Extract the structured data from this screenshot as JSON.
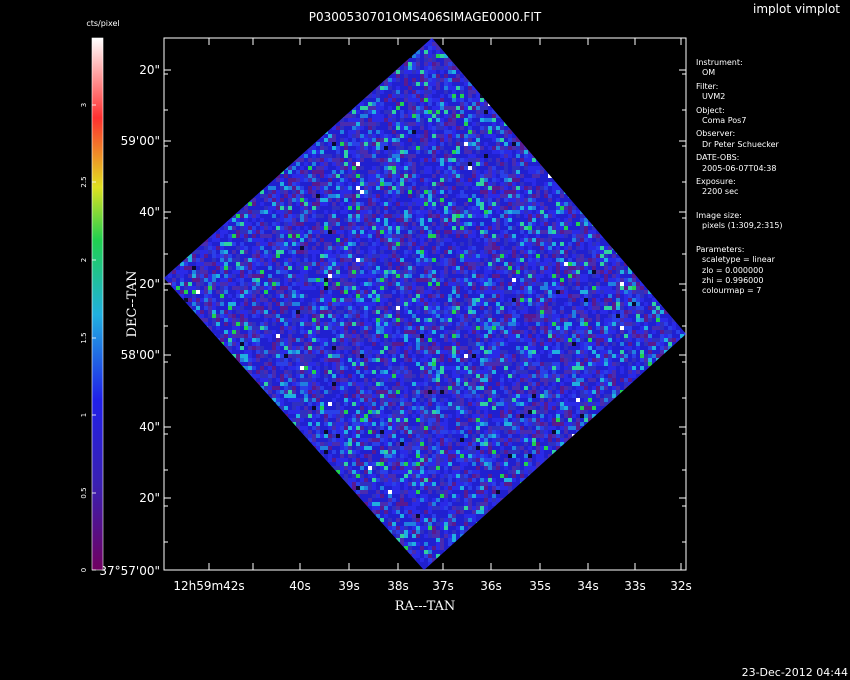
{
  "chart_data": {
    "type": "heatmap",
    "title": "P0300530701OMS406SIMAGE0000.FIT",
    "xlabel": "RA---TAN",
    "ylabel": "DEC--TAN",
    "x_ticks": [
      "12h59m42s",
      "40s",
      "39s",
      "38s",
      "37s",
      "36s",
      "35s",
      "34s",
      "33s",
      "32s"
    ],
    "y_ticks": [
      "37°57'00\"",
      "20\"",
      "40\"",
      "58'00\"",
      "20\"",
      "40\"",
      "59'00\"",
      "20\""
    ],
    "colorbar": {
      "label": "cts/pixel",
      "range": [
        0,
        3
      ],
      "ticks": [
        "0",
        "0.5",
        "1",
        "1.5",
        "2",
        "2.5",
        "3"
      ],
      "colors": [
        "#700060",
        "#2020e8",
        "#20b0e0",
        "#20d050",
        "#e0e020",
        "#ff3030",
        "#ffffff"
      ]
    },
    "scale": "linear",
    "zlo": 0.0,
    "zhi": 0.996
  },
  "window_title": "implot vimplot",
  "timestamp": "23-Dec-2012 04:44",
  "info_panel": {
    "instrument_label": "Instrument:",
    "instrument_value": "OM",
    "filter_label": "Filter:",
    "filter_value": "UVM2",
    "object_label": "Object:",
    "object_value": "Coma Pos7",
    "observer_label": "Observer:",
    "observer_value": "Dr Peter Schuecker",
    "date_label": "DATE-OBS:",
    "date_value": "2005-06-07T04:38",
    "exposure_label": "Exposure:",
    "exposure_value": "2200 sec",
    "image_size_label": "Image size:",
    "image_size_value": "pixels (1:309,2:315)",
    "parameters_label": "Parameters:",
    "scaletype": "scaletype = linear",
    "zlo": "zlo = 0.000000",
    "zhi": "zhi = 0.996000",
    "colourmap": "colourmap =    7"
  }
}
